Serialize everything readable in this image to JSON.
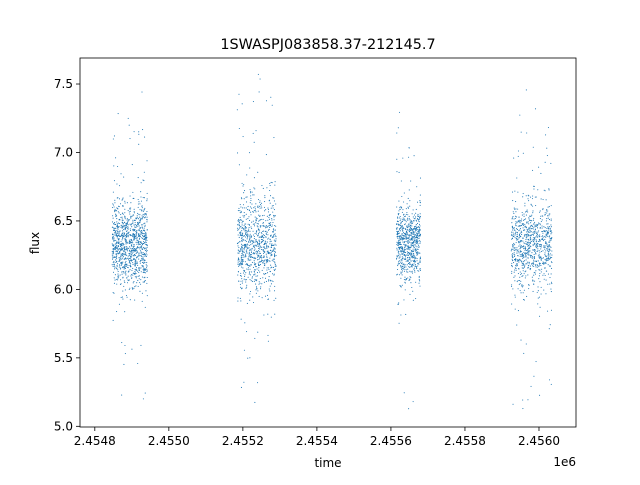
{
  "chart_data": {
    "type": "scatter",
    "title": "1SWASPJ083858.37-212145.7",
    "xlabel": "time",
    "ylabel": "flux",
    "x_offset_label": "1e6",
    "xlim": [
      2.45476,
      2.4561
    ],
    "ylim": [
      4.995,
      7.69
    ],
    "x_ticks": [
      2.4548,
      2.455,
      2.4552,
      2.4554,
      2.4556,
      2.4558,
      2.456
    ],
    "x_tick_labels": [
      "2.4548",
      "2.4550",
      "2.4552",
      "2.4554",
      "2.4556",
      "2.4558",
      "2.4560"
    ],
    "y_ticks": [
      5.0,
      5.5,
      6.0,
      6.5,
      7.0,
      7.5
    ],
    "y_tick_labels": [
      "5.0",
      "5.5",
      "6.0",
      "6.5",
      "7.0",
      "7.5"
    ],
    "grid": false,
    "legend": "none",
    "marker_color": "#1f77b4",
    "series": [
      {
        "clusters": [
          {
            "x_range": [
              2.454847,
              2.454942
            ],
            "center": 6.33,
            "spread": 0.15,
            "max": 7.47,
            "min": 5.18,
            "count": 1100
          },
          {
            "x_range": [
              2.455185,
              2.45529
            ],
            "center": 6.33,
            "spread": 0.17,
            "max": 7.57,
            "min": 5.15,
            "count": 900
          },
          {
            "x_range": [
              2.455615,
              2.45568
            ],
            "center": 6.33,
            "spread": 0.13,
            "max": 7.45,
            "min": 5.12,
            "count": 750
          },
          {
            "x_range": [
              2.455925,
              2.456035
            ],
            "center": 6.33,
            "spread": 0.15,
            "max": 7.5,
            "min": 5.13,
            "count": 900
          }
        ]
      }
    ]
  }
}
